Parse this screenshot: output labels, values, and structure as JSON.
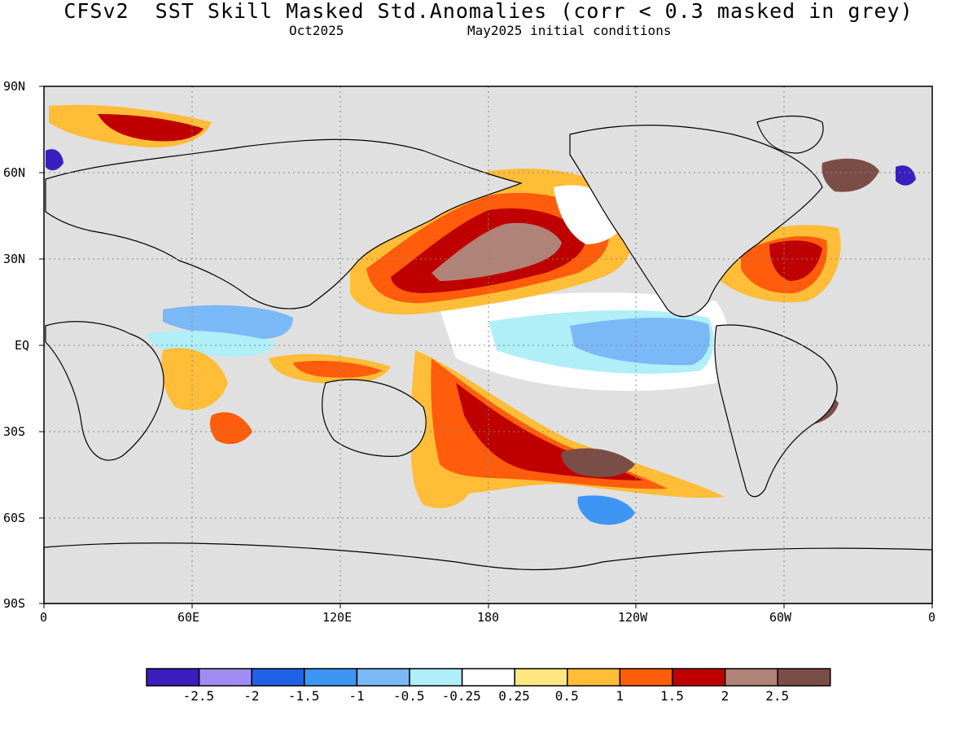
{
  "title": "CFSv2  SST Skill Masked Std.Anomalies (corr < 0.3 masked in grey)",
  "subtitle_left": "Oct2025",
  "subtitle_right": "May2025 initial conditions",
  "map": {
    "lat_ticks": [
      "90N",
      "60N",
      "30N",
      "EQ",
      "30S",
      "60S",
      "90S"
    ],
    "lon_ticks": [
      "0",
      "60E",
      "120E",
      "180",
      "120W",
      "60W",
      "0"
    ],
    "mask_color": "#e0e0e0",
    "land_color": "#e0e0e0",
    "coastline_color": "#000000"
  },
  "colorbar": {
    "colors": [
      "#3a1fbe",
      "#a08cf5",
      "#1f62e6",
      "#3d96f5",
      "#7ab8f7",
      "#b0eef8",
      "#ffffff",
      "#ffe680",
      "#ffbd38",
      "#ff5d0c",
      "#bf0000",
      "#b08378",
      "#7a4e46"
    ],
    "labels": [
      "-2.5",
      "-2",
      "-1.5",
      "-1",
      "-0.5",
      "-0.25",
      "0.25",
      "0.5",
      "1",
      "1.5",
      "2",
      "2.5"
    ]
  }
}
